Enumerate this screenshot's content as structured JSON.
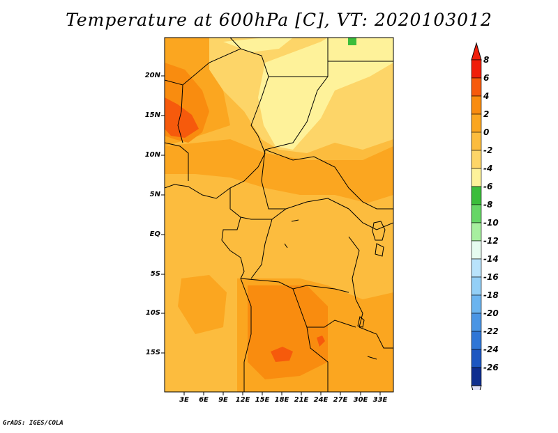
{
  "title": "Temperature at 600hPa [C], VT: 2020103012",
  "credit": "GrADS: IGES/COLA",
  "lat_labels": [
    "20N",
    "15N",
    "10N",
    "5N",
    "EQ",
    "5S",
    "10S",
    "15S"
  ],
  "lon_labels": [
    "3E",
    "6E",
    "9E",
    "12E",
    "15E",
    "18E",
    "21E",
    "24E",
    "27E",
    "30E",
    "33E"
  ],
  "colorbar": {
    "labels": [
      "8",
      "6",
      "4",
      "2",
      "0",
      "-2",
      "-4",
      "-6",
      "-8",
      "-10",
      "-12",
      "-14",
      "-16",
      "-18",
      "-20",
      "-22",
      "-24",
      "-26"
    ],
    "colors": [
      "#f01e0a",
      "#f65a0c",
      "#f98c0f",
      "#fba620",
      "#fcbc3e",
      "#fdd568",
      "#fef29a",
      "#3bbd3b",
      "#66d666",
      "#a7ef9f",
      "#e6fbf0",
      "#b9e3fb",
      "#93cff6",
      "#6bb4ef",
      "#4a95e4",
      "#2f76d6",
      "#1c56c1",
      "#0e2d8f"
    ],
    "extend_top": "#f01e0a",
    "extend_bottom": "#e0e0f8"
  }
}
